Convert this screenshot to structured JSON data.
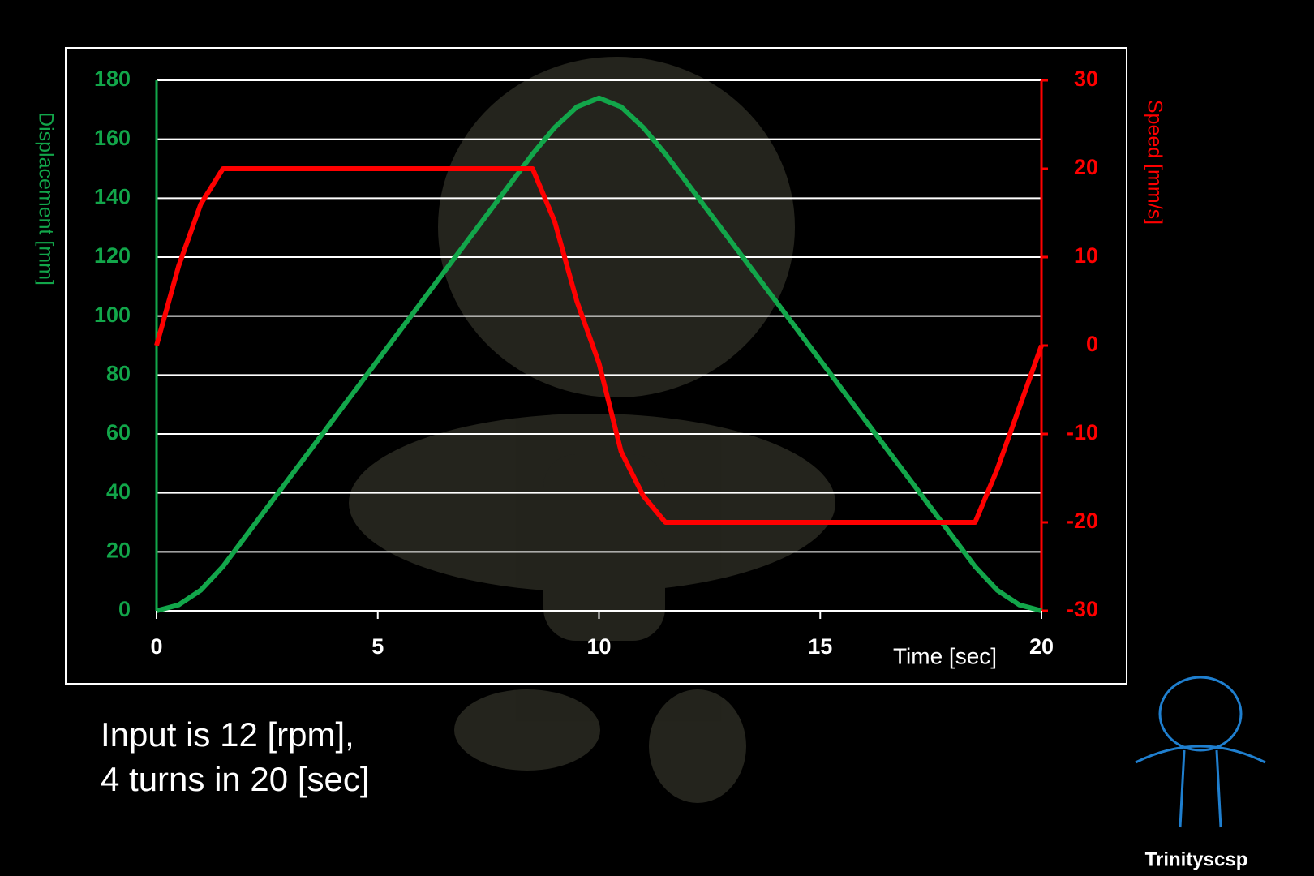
{
  "chart_data": {
    "type": "line",
    "x": [
      0,
      0.5,
      1,
      1.5,
      2,
      2.5,
      3,
      3.5,
      4,
      4.5,
      5,
      5.5,
      6,
      6.5,
      7,
      7.5,
      8,
      8.5,
      9,
      9.5,
      10,
      10.5,
      11,
      11.5,
      12,
      12.5,
      13,
      13.5,
      14,
      14.5,
      15,
      15.5,
      16,
      16.5,
      17,
      17.5,
      18,
      18.5,
      19,
      19.5,
      20
    ],
    "series": [
      {
        "name": "Displacement",
        "color": "#12a64a",
        "values": [
          0,
          2,
          7,
          15,
          25,
          35,
          45,
          55,
          65,
          75,
          85,
          95,
          105,
          115,
          125,
          135,
          145,
          155,
          164,
          171,
          174,
          171,
          164,
          155,
          145,
          135,
          125,
          115,
          105,
          95,
          85,
          75,
          65,
          55,
          45,
          35,
          25,
          15,
          7,
          2,
          0
        ]
      },
      {
        "name": "Speed",
        "color": "#ff0000",
        "axis": "y2",
        "values": [
          0,
          9,
          16,
          20,
          20,
          20,
          20,
          20,
          20,
          20,
          20,
          20,
          20,
          20,
          20,
          20,
          20,
          20,
          14,
          5,
          -2,
          -12,
          -17,
          -20,
          -20,
          -20,
          -20,
          -20,
          -20,
          -20,
          -20,
          -20,
          -20,
          -20,
          -20,
          -20,
          -20,
          -20,
          -14,
          -7,
          0
        ]
      }
    ],
    "xlim": [
      0,
      20
    ],
    "xticks": [
      0,
      5,
      10,
      15,
      20
    ],
    "ylim": [
      0,
      180
    ],
    "yticks": [
      0,
      20,
      40,
      60,
      80,
      100,
      120,
      140,
      160,
      180
    ],
    "y2lim": [
      -30,
      30
    ],
    "y2ticks": [
      -30,
      -20,
      -10,
      0,
      10,
      20,
      30
    ],
    "xlabel": "Time [sec]",
    "ylabel": "Displacement [mm]",
    "y2label": "Speed [mm/s]",
    "grid": true,
    "annotation": [
      "Input is 12 [rpm],",
      "4 turns in 20 [sec]"
    ],
    "credit": "Trinityscsp"
  }
}
